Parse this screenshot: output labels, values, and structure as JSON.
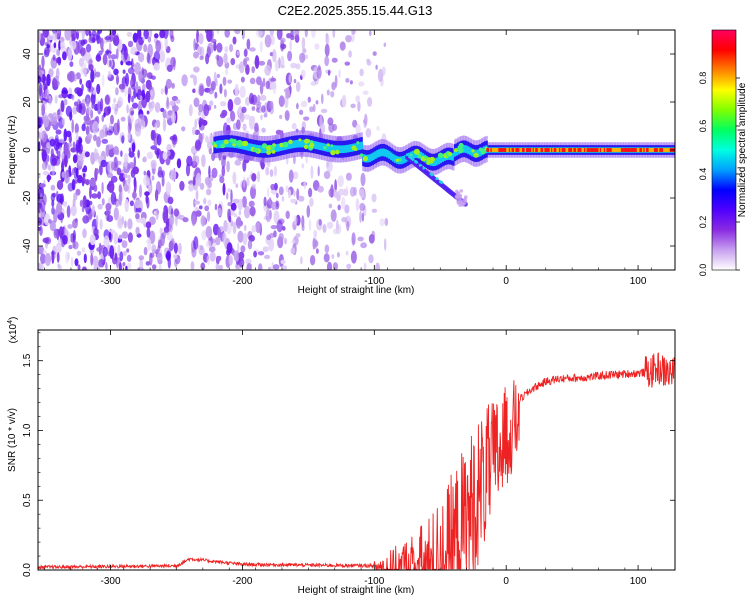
{
  "title": "C2E2.2025.355.15.44.G13",
  "chart_data": [
    {
      "type": "heatmap",
      "xlabel": "Height of straight line (km)",
      "ylabel": "Frequency (Hz)",
      "xlim": [
        -355,
        128
      ],
      "ylim": [
        -50,
        50
      ],
      "xticks": [
        -300,
        -200,
        -100,
        0,
        100
      ],
      "yticks": [
        -40,
        -20,
        0,
        20,
        40
      ],
      "colorbar": {
        "label": "Normalized spectral amplitude",
        "range": [
          0,
          1
        ],
        "ticks": [
          "0.0",
          "0.2",
          "0.4",
          "0.6",
          "0.8"
        ],
        "colors": [
          "#ffffff",
          "#c8a0f0",
          "#8a2be2",
          "#5000ff",
          "#0000ff",
          "#00a0ff",
          "#00ffe0",
          "#00ff60",
          "#80ff00",
          "#ffff00",
          "#ff8000",
          "#ff0000",
          "#ff0060"
        ]
      },
      "features": {
        "noise_region_x": [
          -355,
          -100
        ],
        "line_start_x": -222,
        "line_freq_hz": 0,
        "branch_end": [
          -30,
          -23
        ]
      }
    },
    {
      "type": "line",
      "xlabel": "Height of straight line (km)",
      "ylabel": "SNR (10 * v/v)",
      "y_scale_label": "(x10^4)",
      "xlim": [
        -355,
        128
      ],
      "ylim": [
        0,
        1.72
      ],
      "xticks": [
        -300,
        -200,
        -100,
        0,
        100
      ],
      "yticks": [
        "0.0",
        "0.5",
        "1.0",
        "1.5"
      ],
      "series": [
        {
          "color": "#ee2222",
          "x": [
            -355,
            -250,
            -240,
            -200,
            -100,
            -80,
            -60,
            -50,
            -40,
            -30,
            -20,
            -10,
            0,
            10,
            20,
            30,
            40,
            60,
            80,
            100,
            110,
            115,
            120,
            128
          ],
          "y": [
            0.02,
            0.03,
            0.08,
            0.04,
            0.03,
            0.07,
            0.15,
            0.25,
            0.4,
            0.58,
            0.8,
            0.95,
            1.1,
            1.22,
            1.3,
            1.35,
            1.37,
            1.38,
            1.4,
            1.41,
            1.42,
            1.45,
            1.42,
            1.41
          ]
        }
      ]
    }
  ]
}
